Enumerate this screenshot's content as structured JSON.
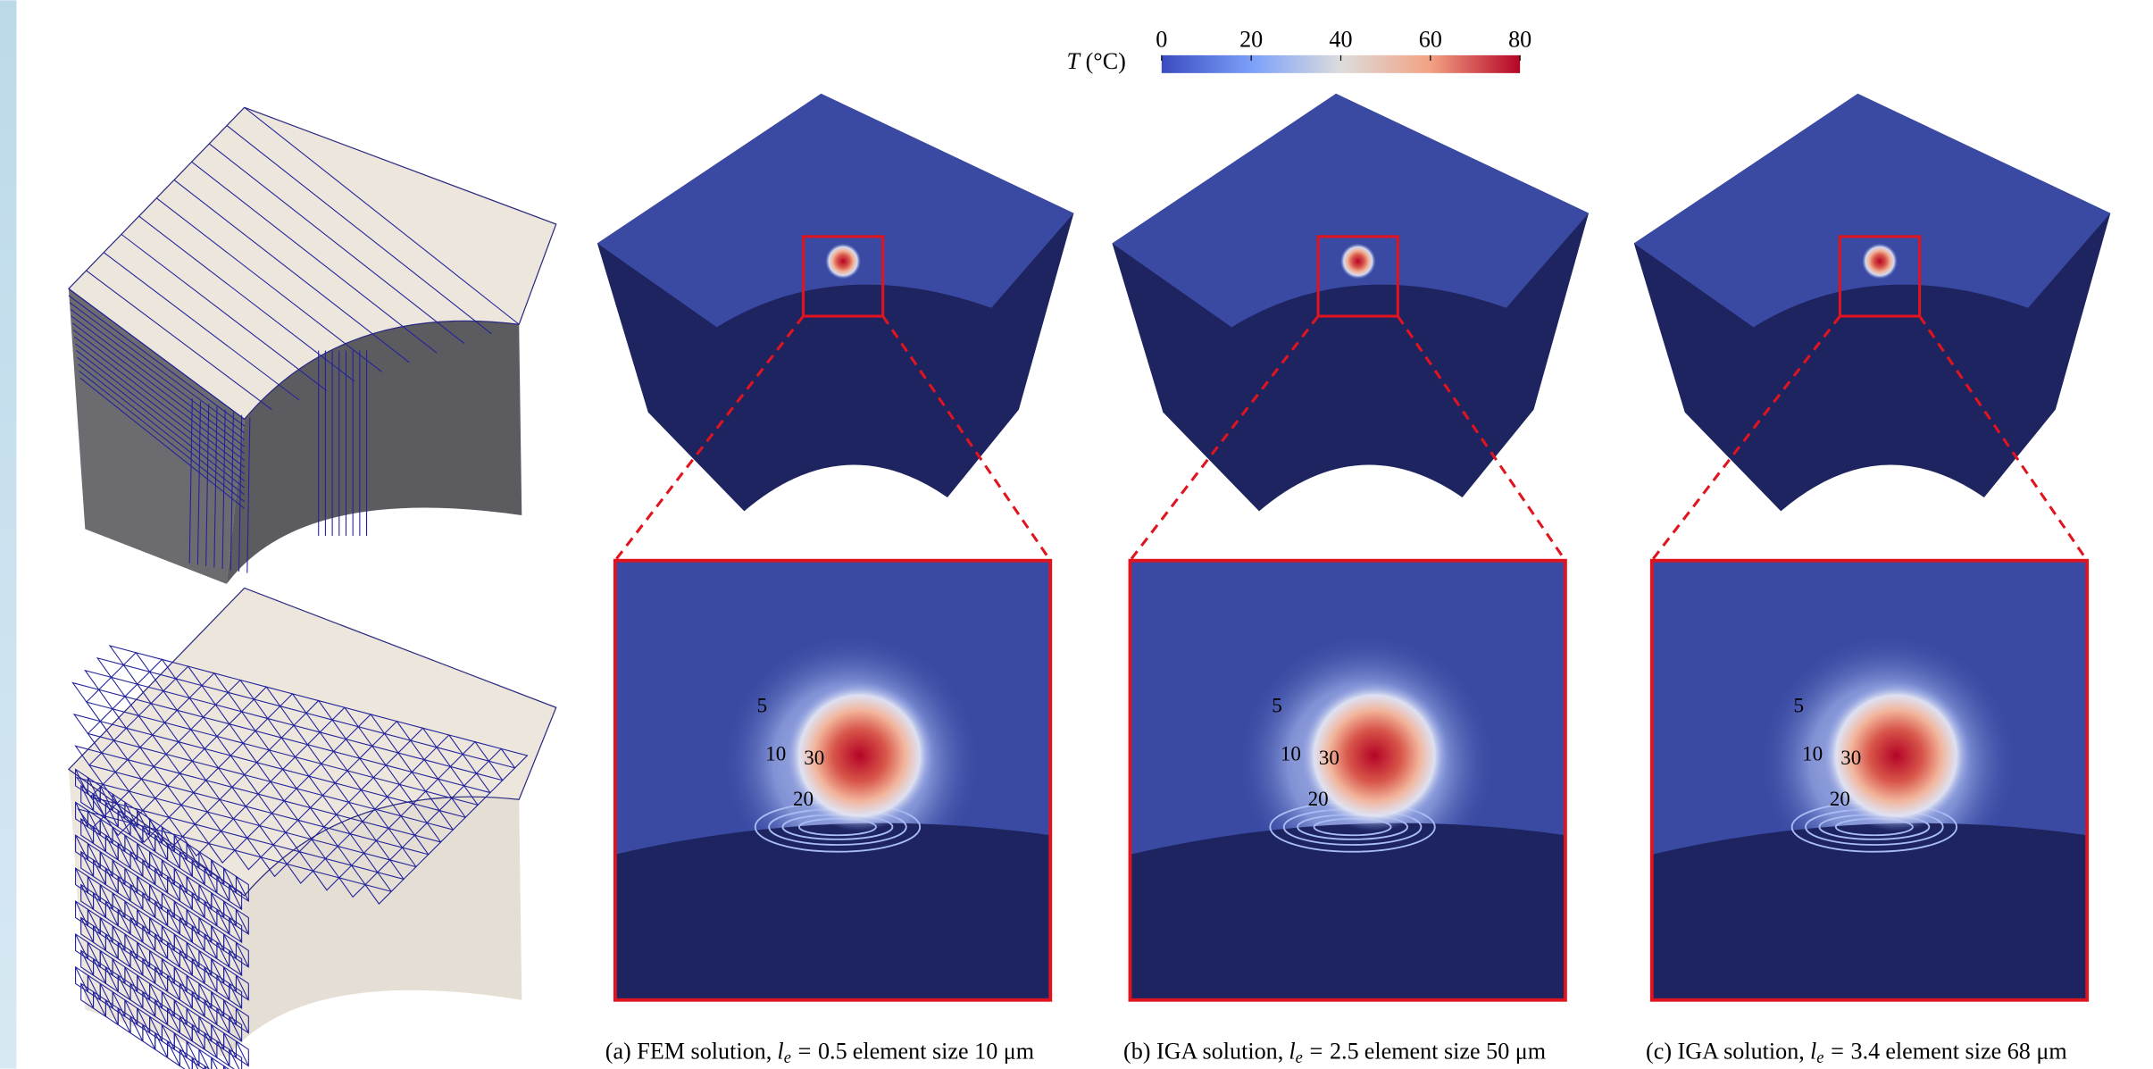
{
  "colorbar": {
    "symbol": "T",
    "unit": "(°C)",
    "range": [
      0,
      80
    ],
    "ticks": [
      0,
      20,
      40,
      60,
      80
    ]
  },
  "panels": [
    {
      "caption": {
        "prefix": "(a) FEM solution,",
        "symbol": "l",
        "subscript": "e",
        "equals": "=",
        "value": 0.5,
        "rest": "element size 10 μm"
      },
      "contour_labels": [
        5,
        10,
        30,
        20
      ]
    },
    {
      "caption": {
        "prefix": "(b) IGA solution,",
        "symbol": "l",
        "subscript": "e",
        "equals": "=",
        "value": 2.5,
        "rest": "element size 50 μm"
      },
      "contour_labels": [
        5,
        10,
        30,
        20
      ]
    },
    {
      "caption": {
        "prefix": "(c) IGA solution,",
        "symbol": "l",
        "subscript": "e",
        "equals": "=",
        "value": 3.4,
        "rest": "element size 68 μm"
      },
      "contour_labels": [
        5,
        10,
        30,
        20
      ]
    }
  ]
}
